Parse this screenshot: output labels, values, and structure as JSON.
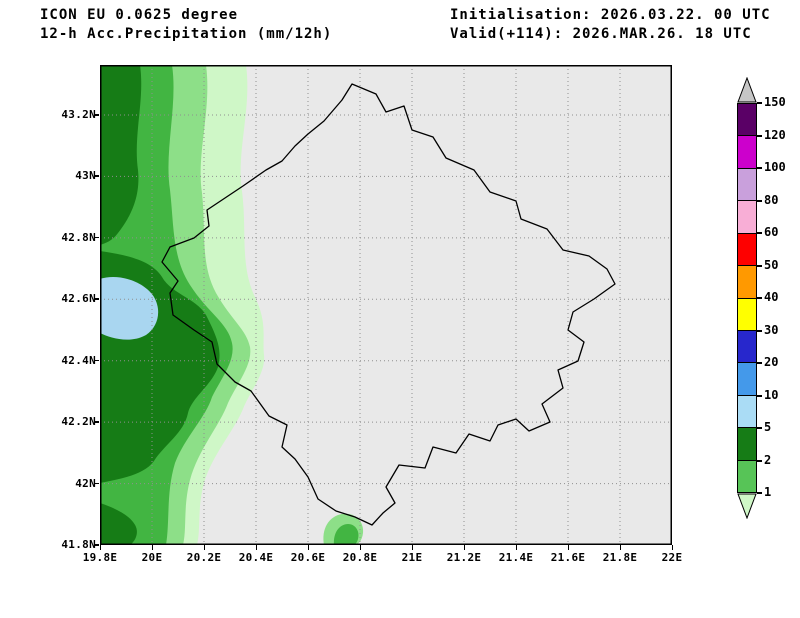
{
  "header": {
    "model": "ICON EU 0.0625 degree",
    "product": "12-h Acc.Precipitation (mm/12h)",
    "initialisation": "Initialisation: 2026.03.22. 00 UTC",
    "valid": "Valid(+114): 2026.MAR.26. 18 UTC"
  },
  "map": {
    "region": "Kosovo",
    "background": "#e9e9e9",
    "grid_color": "#8f8f8f",
    "border_color": "#000000",
    "x_ticks": [
      "19.8E",
      "20E",
      "20.2E",
      "20.4E",
      "20.6E",
      "20.8E",
      "21E",
      "21.2E",
      "21.4E",
      "21.6E",
      "21.8E",
      "22E"
    ],
    "y_ticks": [
      "43.2N",
      "43N",
      "42.8N",
      "42.6N",
      "42.4N",
      "42.2N",
      "42N",
      "41.8N"
    ]
  },
  "precip_colors": {
    "band1": "#cff7c7",
    "band2": "#8ddf88",
    "band3": "#42b542",
    "band4": "#167c16",
    "band5_blue": "#a9d6f0"
  },
  "colorbar": {
    "labels": [
      "150",
      "120",
      "100",
      "80",
      "60",
      "50",
      "40",
      "30",
      "20",
      "10",
      "5",
      "2",
      "1"
    ],
    "cells": [
      "#5a0066",
      "#cc00cc",
      "#c9a0dc",
      "#f8aed6",
      "#fe0000",
      "#ff9900",
      "#ffff00",
      "#2727cc",
      "#4499ea",
      "#aadcf5",
      "#167c16",
      "#57c457"
    ],
    "top_cap": "#c6c6c6",
    "bottom_cap": "#cff7c7"
  }
}
